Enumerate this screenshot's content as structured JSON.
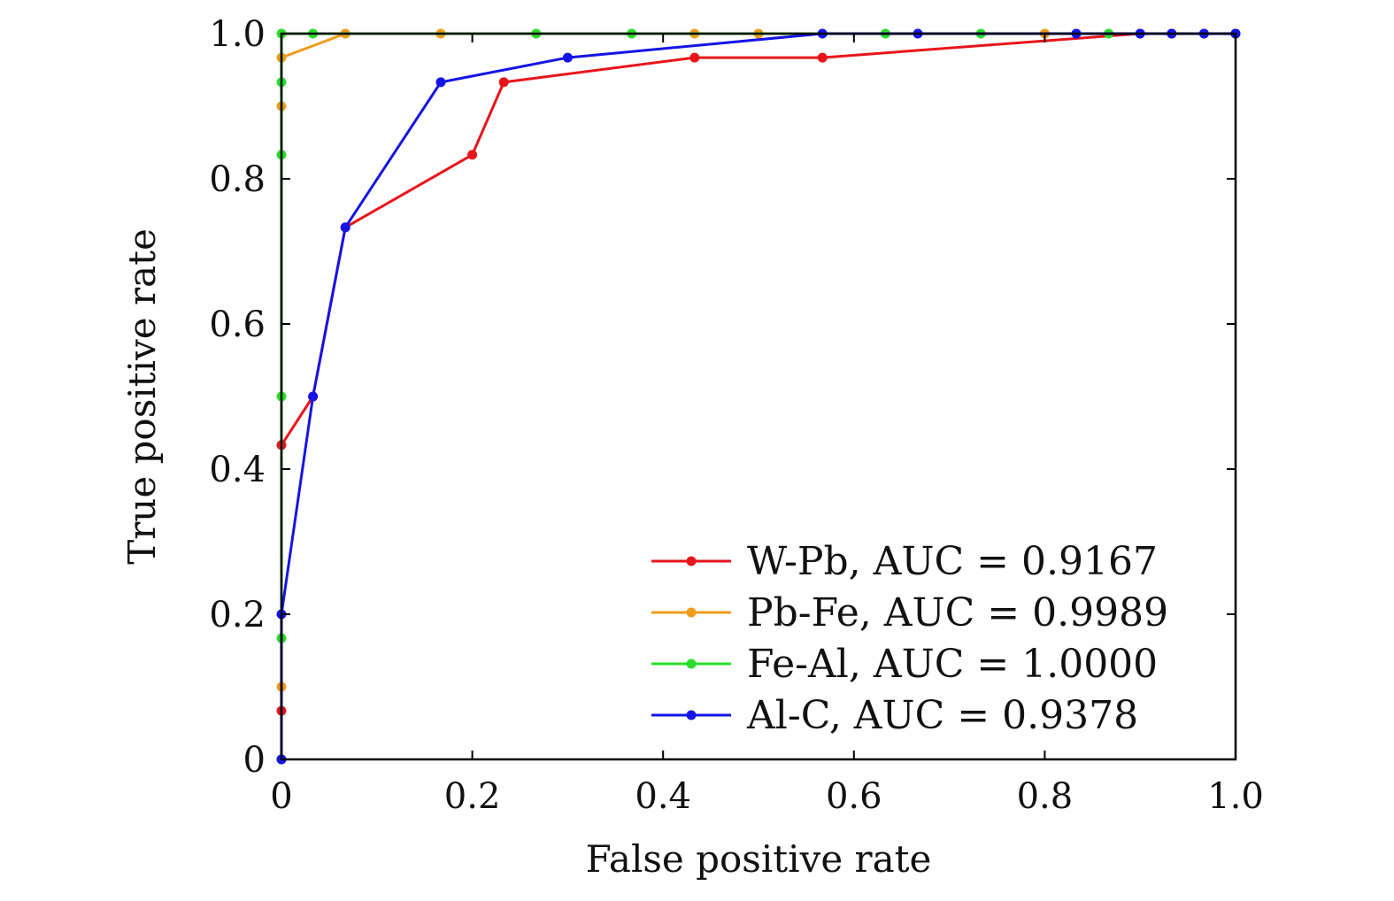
{
  "chart_data": {
    "type": "line",
    "title": "",
    "xlabel": "False positive rate",
    "ylabel": "True positive rate",
    "xlim": [
      0,
      1
    ],
    "ylim": [
      0,
      1
    ],
    "xticks": [
      "0",
      "0.2",
      "0.4",
      "0.6",
      "0.8",
      "1.0"
    ],
    "yticks": [
      "0",
      "0.2",
      "0.4",
      "0.6",
      "0.8",
      "1.0"
    ],
    "grid": false,
    "legend_position": "bottom-right",
    "series": [
      {
        "name": "W-Pb, AUC = 0.9167",
        "color": "#e8141b",
        "x": [
          0,
          0,
          0,
          0.033,
          0.067,
          0.2,
          0.233,
          0.433,
          0.567,
          0.9,
          0.933,
          0.967,
          1.0
        ],
        "y": [
          0,
          0.067,
          0.433,
          0.5,
          0.733,
          0.833,
          0.933,
          0.967,
          0.967,
          1.0,
          1.0,
          1.0,
          1.0
        ]
      },
      {
        "name": "Pb-Fe, AUC = 0.9989",
        "color": "#f09b1a",
        "x": [
          0,
          0,
          0,
          0,
          0.067,
          0.167,
          0.433,
          0.5,
          0.8,
          1.0
        ],
        "y": [
          0,
          0.1,
          0.9,
          0.967,
          1.0,
          1.0,
          1.0,
          1.0,
          1.0,
          1.0
        ]
      },
      {
        "name": "Fe-Al, AUC = 1.0000",
        "color": "#2bdc2b",
        "x": [
          0,
          0,
          0,
          0,
          0,
          0,
          0.033,
          0.267,
          0.367,
          0.633,
          0.733,
          0.867,
          1.0
        ],
        "y": [
          0,
          0.167,
          0.5,
          0.833,
          0.933,
          1.0,
          1.0,
          1.0,
          1.0,
          1.0,
          1.0,
          1.0,
          1.0
        ]
      },
      {
        "name": "Al-C, AUC = 0.9378",
        "color": "#1414e6",
        "x": [
          0,
          0,
          0.033,
          0.067,
          0.167,
          0.3,
          0.567,
          0.667,
          0.833,
          0.9,
          0.933,
          0.967,
          1.0
        ],
        "y": [
          0,
          0.2,
          0.5,
          0.733,
          0.933,
          0.967,
          1.0,
          1.0,
          1.0,
          1.0,
          1.0,
          1.0,
          1.0
        ]
      }
    ]
  }
}
